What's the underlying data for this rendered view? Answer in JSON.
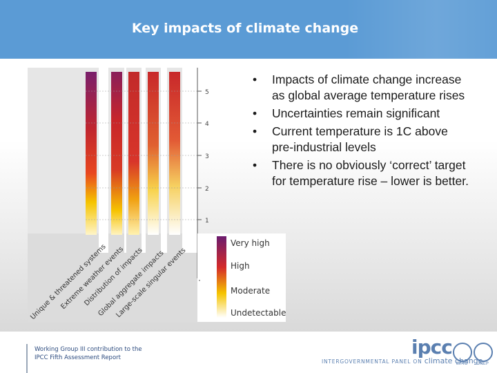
{
  "header": {
    "title": "Key impacts of climate change"
  },
  "figure": {
    "scale_ticks": [
      "1",
      "2",
      "3",
      "4",
      "5"
    ],
    "columns": [
      "Unique & threatened systems",
      "Extreme weather events",
      "Distribution of impacts",
      "Global aggregate impacts",
      "Large-scale singular events"
    ],
    "legend": [
      "Very high",
      "High",
      "Moderate",
      "Undetectable"
    ],
    "colors": {
      "very_high": "#6b1c6e",
      "high": "#d42a2a",
      "moderate": "#f5c400",
      "undetectable": "#ffffff"
    }
  },
  "bullets": [
    "Impacts of climate change increase as global average temperature rises",
    "Uncertainties remain significant",
    "Current temperature is 1C above pre-industrial levels",
    "There is no obviously ‘correct’ target for temperature rise – lower is better."
  ],
  "footer": {
    "line1": "Working Group III contribution to the",
    "line2": "IPCC Fifth Assessment Report"
  },
  "branding": {
    "logo": "ipcc",
    "tagline": "INTERGOVERNMENTAL PANEL ON",
    "tagline_cc": "climate change",
    "partner1": "WMO",
    "partner2": "UNEP"
  }
}
